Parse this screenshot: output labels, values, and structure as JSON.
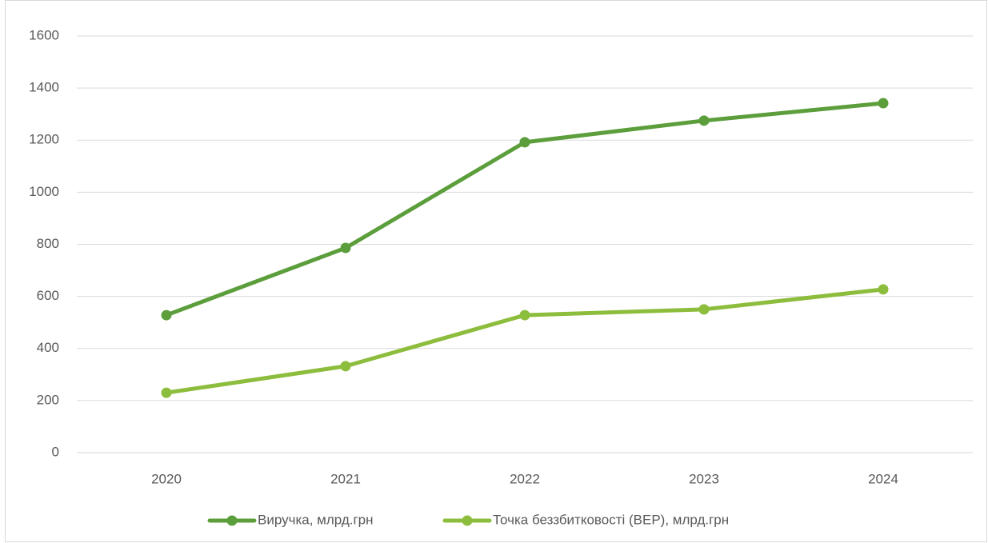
{
  "chart_data": {
    "type": "line",
    "categories": [
      "2020",
      "2021",
      "2022",
      "2023",
      "2024"
    ],
    "series": [
      {
        "name": "Виручка, млрд.грн",
        "color": "#5b9e3b",
        "values": [
          528,
          786,
          1192,
          1275,
          1342
        ]
      },
      {
        "name": "Точка беззбитковості (BEP), млрд.грн",
        "color": "#8dbd3d",
        "values": [
          230,
          332,
          528,
          550,
          627
        ]
      }
    ],
    "ylim": [
      0,
      1600
    ],
    "yticks": [
      0,
      200,
      400,
      600,
      800,
      1000,
      1200,
      1400,
      1600
    ],
    "grid": true,
    "legend": "bottom"
  }
}
